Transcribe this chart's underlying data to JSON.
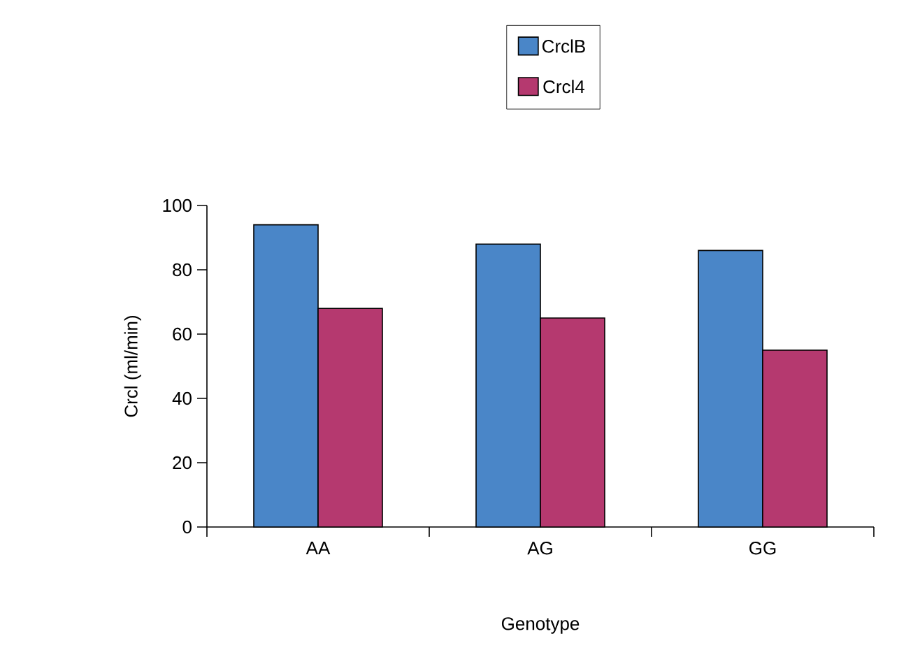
{
  "chart_data": {
    "type": "bar",
    "xlabel": "Genotype",
    "ylabel": "Crcl (ml/min)",
    "categories": [
      "AA",
      "AG",
      "GG"
    ],
    "series": [
      {
        "name": "CrclB",
        "color": "#4a86c8",
        "values": [
          94,
          88,
          86
        ]
      },
      {
        "name": "Crcl4",
        "color": "#b5396f",
        "values": [
          68,
          65,
          55
        ]
      }
    ],
    "ylim": [
      0,
      100
    ],
    "yticks": [
      0,
      20,
      40,
      60,
      80,
      100
    ],
    "legend": "top",
    "grid": false
  }
}
